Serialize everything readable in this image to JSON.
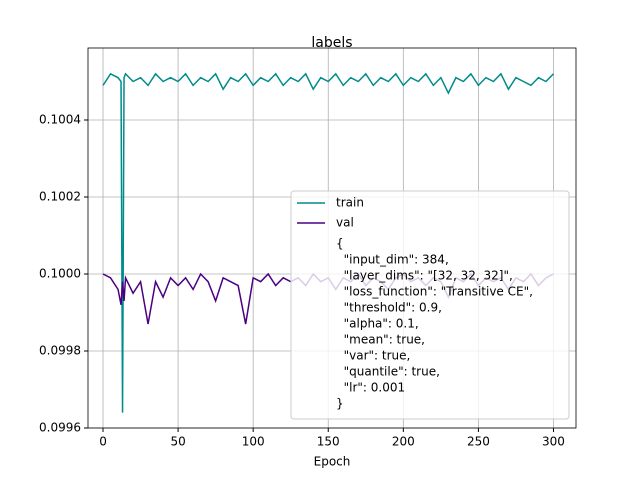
{
  "chart_data": {
    "type": "line",
    "title": "labels",
    "xlabel": "Epoch",
    "x": [
      0,
      5,
      10,
      12,
      13,
      14,
      15,
      20,
      25,
      30,
      35,
      40,
      45,
      50,
      55,
      60,
      65,
      70,
      75,
      80,
      85,
      90,
      95,
      100,
      105,
      110,
      115,
      120,
      125,
      130,
      135,
      140,
      145,
      150,
      155,
      160,
      165,
      170,
      175,
      180,
      185,
      190,
      195,
      200,
      205,
      210,
      215,
      220,
      225,
      230,
      235,
      240,
      245,
      250,
      255,
      260,
      265,
      270,
      275,
      280,
      285,
      290,
      295,
      300
    ],
    "series": [
      {
        "name": "train",
        "color": "#008b8b",
        "values": [
          0.10049,
          0.10052,
          0.10051,
          0.1005,
          0.09964,
          0.10051,
          0.10052,
          0.1005,
          0.10051,
          0.10049,
          0.10052,
          0.1005,
          0.10051,
          0.1005,
          0.10052,
          0.10049,
          0.10051,
          0.1005,
          0.10052,
          0.10048,
          0.10051,
          0.1005,
          0.10052,
          0.10049,
          0.10051,
          0.1005,
          0.10052,
          0.10049,
          0.10051,
          0.1005,
          0.10052,
          0.10048,
          0.10051,
          0.1005,
          0.10052,
          0.10049,
          0.10051,
          0.1005,
          0.10052,
          0.10049,
          0.10051,
          0.1005,
          0.10052,
          0.10049,
          0.10051,
          0.1005,
          0.10052,
          0.10049,
          0.10051,
          0.10047,
          0.10051,
          0.1005,
          0.10052,
          0.10049,
          0.10051,
          0.1005,
          0.10052,
          0.10048,
          0.10051,
          0.1005,
          0.10049,
          0.10051,
          0.1005,
          0.10052
        ]
      },
      {
        "name": "val",
        "color": "#4b0082",
        "values": [
          0.1,
          0.09999,
          0.09996,
          0.09992,
          0.09998,
          0.09993,
          0.09999,
          0.09995,
          0.09998,
          0.09987,
          0.09998,
          0.09994,
          0.09999,
          0.09997,
          0.09999,
          0.09996,
          0.1,
          0.09998,
          0.09993,
          0.09999,
          0.09998,
          0.09997,
          0.09987,
          0.09999,
          0.09998,
          0.1,
          0.09997,
          0.09999,
          0.09998,
          0.09999,
          0.09997,
          0.1,
          0.09998,
          0.09999,
          0.09996,
          0.09999,
          0.09998,
          0.1,
          0.09997,
          0.09999,
          0.09998,
          0.09996,
          0.09999,
          0.1,
          0.09998,
          0.09999,
          0.09997,
          0.09999,
          0.09998,
          0.09994,
          0.09999,
          0.09998,
          0.1,
          0.09997,
          0.09999,
          0.09998,
          0.09999,
          0.09996,
          0.09999,
          0.09998,
          0.1,
          0.09997,
          0.09999,
          0.1
        ]
      }
    ],
    "legend_text": [
      "{",
      "  \"input_dim\": 384,",
      "  \"layer_dims\": \"[32, 32, 32]\",",
      "  \"loss_function\": \"Transitive CE\",",
      "  \"threshold\": 0.9,",
      "  \"alpha\": 0.1,",
      "  \"mean\": true,",
      "  \"var\": true,",
      "  \"quantile\": true,",
      "  \"lr\": 0.001",
      "}"
    ],
    "xlim": [
      -10,
      315
    ],
    "ylim": [
      0.0996,
      0.100587
    ],
    "xticks": [
      0,
      50,
      100,
      150,
      200,
      250,
      300
    ],
    "yticks": [
      0.0996,
      0.0998,
      {
        "value": 0.1,
        "label": "0.1000"
      },
      0.1002,
      0.1004
    ],
    "grid": true,
    "legend": "lower right"
  }
}
